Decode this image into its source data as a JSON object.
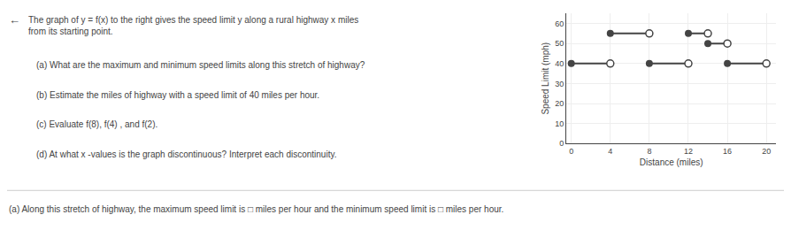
{
  "chart_data": {
    "type": "line",
    "title": "The graph of y = f(x) to the right gives the speed limit y along a rural highway x miles from its starting point.",
    "xlabel": "Distance (miles)",
    "ylabel": "Speed Limit (mph)",
    "segments": [
      {
        "x_start": 0,
        "x_end": 4,
        "y": 40,
        "left_closed": true,
        "right_closed": false
      },
      {
        "x_start": 4,
        "x_end": 8,
        "y": 55,
        "left_closed": true,
        "right_closed": false
      },
      {
        "x_start": 8,
        "x_end": 12,
        "y": 40,
        "left_closed": true,
        "right_closed": false
      },
      {
        "x_start": 12,
        "x_end": 14,
        "y": 55,
        "left_closed": true,
        "right_closed": false
      },
      {
        "x_start": 14,
        "x_end": 16,
        "y": 50,
        "left_closed": true,
        "right_closed": false
      },
      {
        "x_start": 16,
        "x_end": 20,
        "y": 40,
        "left_closed": true,
        "right_closed": false
      }
    ],
    "xlim": [
      -0.5,
      21
    ],
    "ylim": [
      0,
      65
    ],
    "xticks": [
      0,
      4,
      8,
      12,
      16,
      20
    ],
    "yticks": [
      0,
      10,
      20,
      30,
      40,
      50,
      60
    ],
    "grid": true,
    "color": "#444444",
    "annotations": [
      "←",
      "(a) What are the maximum and minimum speed limits along this stretch of highway?",
      "(b) Estimate the miles of highway with a speed limit of 40 miles per hour.",
      "(c) Evaluate f(8), f(4) , and f(2).",
      "(d) At what x -values is the graph discontinuous? Interpret each discontinuity.",
      "(a) Along this stretch of highway, the maximum speed limit is □ miles per hour and the minimum speed limit is □ miles per hour."
    ]
  }
}
